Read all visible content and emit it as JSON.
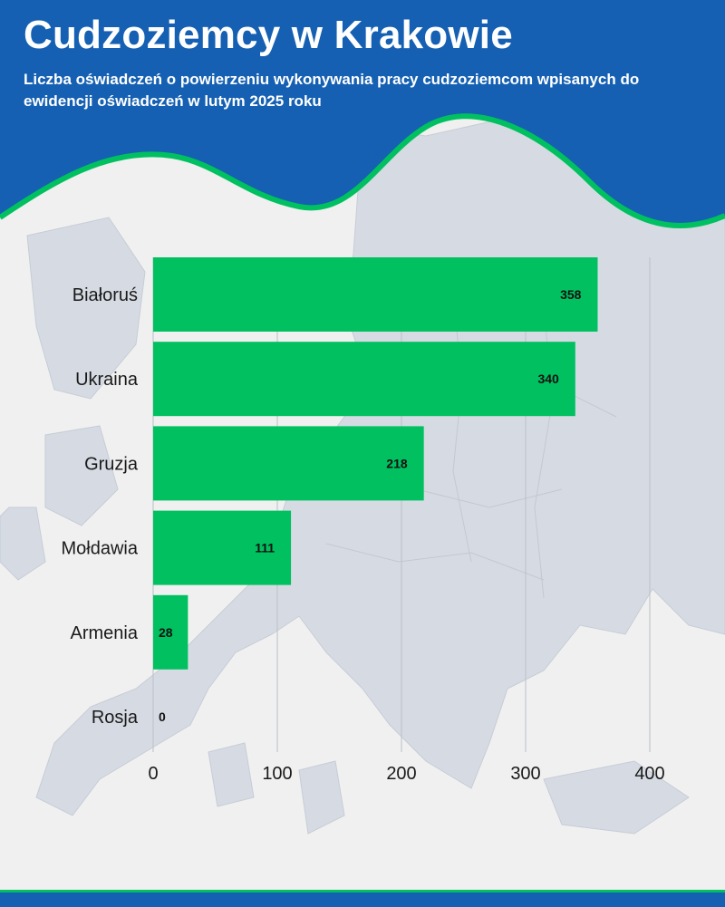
{
  "header": {
    "title": "Cudzoziemcy w Krakowie",
    "subtitle": "Liczba oświadczeń o powierzeniu wykonywania pracy cudzoziemcom wpisanych do ewidencji oświadczeń w lutym 2025 roku"
  },
  "colors": {
    "header_bg": "#1560b2",
    "accent_green": "#00c060",
    "bar": "#00c060",
    "map_land": "#d6dbe3",
    "map_sea": "#f0f0f0"
  },
  "chart_data": {
    "type": "bar",
    "orientation": "horizontal",
    "categories": [
      "Białoruś",
      "Ukraina",
      "Gruzja",
      "Mołdawia",
      "Armenia",
      "Rosja"
    ],
    "values": [
      358,
      340,
      218,
      111,
      28,
      0
    ],
    "value_labels": [
      "358",
      "340",
      "218",
      "111",
      "28",
      "0"
    ],
    "xlim": [
      0,
      400
    ],
    "xticks": [
      0,
      100,
      200,
      300,
      400
    ],
    "xtick_labels": [
      "0",
      "100",
      "200",
      "300",
      "400"
    ],
    "grid": "vertical",
    "legend": "none"
  }
}
